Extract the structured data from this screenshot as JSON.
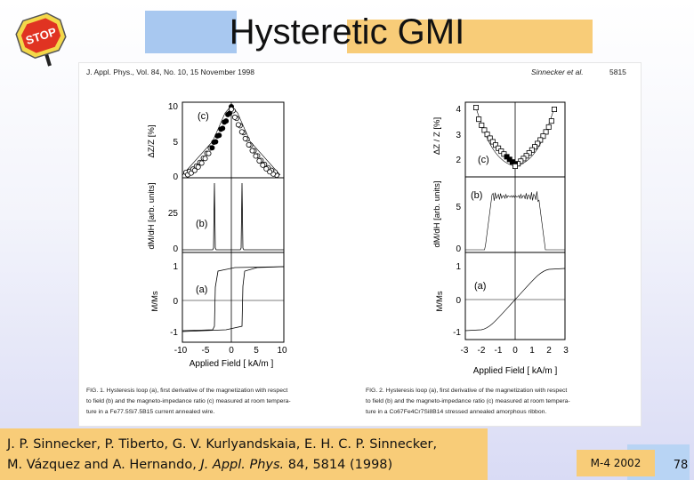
{
  "slide": {
    "title": "Hysteretic GMI",
    "footer": "M-4 2002",
    "page_number": "78"
  },
  "paper": {
    "header_left": "J. Appl. Phys., Vol. 84, No. 10, 15 November 1998",
    "header_right": "Sinnecker et al.",
    "header_page": "5815",
    "fig1": {
      "x_label": "Applied Field [ kA/m ]",
      "x_ticks": [
        "-10",
        "-5",
        "0",
        "5",
        "10"
      ],
      "panel_c": {
        "label": "(c)",
        "ylabel": "ΔZ/Z [%]",
        "ticks": [
          "10",
          "5",
          "0"
        ]
      },
      "panel_b": {
        "label": "(b)",
        "ylabel": "dM/dH [arb. units]",
        "ticks": [
          "25",
          "0"
        ]
      },
      "panel_a": {
        "label": "(a)",
        "ylabel": "M/Ms",
        "ticks": [
          "1",
          "0",
          "-1"
        ]
      },
      "caption": [
        "FIG. 1. Hysteresis loop (a), first derivative of the magnetization with respect",
        "to field (b) and the magneto-impedance ratio (c) measured at room tempera-",
        "ture in a Fe77.5Si7.5B15 current annealed wire."
      ]
    },
    "fig2": {
      "x_label": "Applied Field [ kA/m ]",
      "x_ticks": [
        "-3",
        "-2",
        "-1",
        "0",
        "1",
        "2",
        "3"
      ],
      "panel_c": {
        "label": "(c)",
        "ylabel": "ΔZ / Z [%]",
        "ticks": [
          "4",
          "3",
          "2"
        ]
      },
      "panel_b": {
        "label": "(b)",
        "ylabel": "dM/dH [arb. units]",
        "ticks": [
          "5",
          "0"
        ]
      },
      "panel_a": {
        "label": "(a)",
        "ylabel": "M/Ms",
        "ticks": [
          "1",
          "0",
          "-1"
        ]
      },
      "caption": [
        "FIG. 2. Hysteresis loop (a), first derivative of the magnetization with respect",
        "to field (b) and the magneto-impedance ratio (c) measured at room tempera-",
        "ture in a Co67Fe4Cr7Si8B14 stressed annealed amorphous ribbon."
      ]
    }
  },
  "citation": {
    "line1": "J. P. Sinnecker, P. Tiberto, G. V. Kurlyandskaia, E. H. C. P. Sinnecker,",
    "line2_authors": "M. Vázquez and A. Hernando,",
    "journal": "J. Appl. Phys.",
    "volume": "84",
    "pages": ", 5814 (1998)"
  }
}
